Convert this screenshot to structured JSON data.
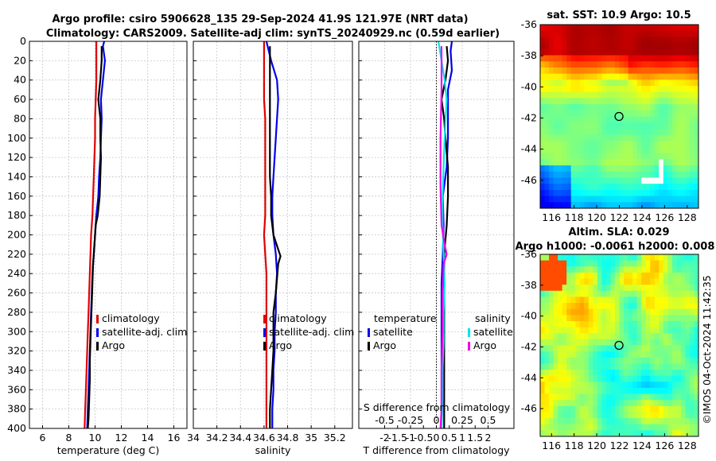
{
  "header": {
    "line1": "Argo profile: csiro 5906628_135 29-Sep-2024 41.9S 121.97E (NRT data)",
    "line2": "Climatology: CARS2009. Satellite-adj clim: synTS_20240929.nc (0.59d earlier)"
  },
  "timestamp": "©IMOS 04-Oct-2024 11:42:35",
  "colors": {
    "climatology": "#e00000",
    "satellite": "#0000ee",
    "argo": "#000000",
    "sal_satellite": "#00e5ee",
    "sal_argo": "#ee00ee",
    "grid": "#c8c8c8"
  },
  "chart_data": [
    {
      "id": "temperature",
      "type": "line",
      "xlabel": "temperature (deg C)",
      "ylabel": "",
      "xlim": [
        5,
        17
      ],
      "ylim": [
        400,
        0
      ],
      "xticks": [
        6,
        8,
        10,
        12,
        14,
        16
      ],
      "yticks": [
        0,
        20,
        40,
        60,
        80,
        100,
        120,
        140,
        160,
        180,
        200,
        220,
        240,
        260,
        280,
        300,
        320,
        340,
        360,
        380,
        400
      ],
      "legend": [
        "climatology",
        "satellite-adj. clim",
        "Argo"
      ],
      "series": [
        {
          "name": "climatology",
          "color": "#e00000",
          "depth": [
            0,
            20,
            40,
            60,
            80,
            100,
            120,
            140,
            160,
            180,
            200,
            220,
            240,
            260,
            280,
            300,
            320,
            340,
            360,
            380,
            400
          ],
          "values": [
            10.1,
            10.1,
            10.1,
            10.05,
            10.0,
            10.0,
            9.95,
            9.9,
            9.85,
            9.8,
            9.7,
            9.65,
            9.6,
            9.55,
            9.5,
            9.45,
            9.4,
            9.35,
            9.3,
            9.25,
            9.2
          ]
        },
        {
          "name": "satellite-adj. clim",
          "color": "#0000ee",
          "depth": [
            0,
            5,
            20,
            40,
            60,
            80,
            100,
            120,
            140,
            160,
            180,
            200,
            220,
            240,
            260,
            280,
            300,
            320,
            340,
            360,
            380,
            400
          ],
          "values": [
            10.7,
            10.6,
            10.75,
            10.6,
            10.45,
            10.5,
            10.45,
            10.4,
            10.3,
            10.25,
            10.1,
            10.0,
            9.9,
            9.8,
            9.75,
            9.7,
            9.65,
            9.6,
            9.55,
            9.5,
            9.45,
            9.4
          ]
        },
        {
          "name": "Argo",
          "color": "#000000",
          "depth": [
            5,
            20,
            40,
            60,
            80,
            100,
            120,
            140,
            160,
            180,
            190,
            210,
            230,
            250,
            270,
            290,
            310,
            330,
            350,
            370,
            390,
            400
          ],
          "values": [
            10.5,
            10.5,
            10.4,
            10.25,
            10.4,
            10.4,
            10.45,
            10.4,
            10.35,
            10.2,
            10.05,
            9.95,
            9.85,
            9.8,
            9.75,
            9.7,
            9.65,
            9.6,
            9.6,
            9.55,
            9.5,
            9.45
          ]
        }
      ]
    },
    {
      "id": "salinity",
      "type": "line",
      "xlabel": "salinity",
      "ylabel": "",
      "xlim": [
        34.0,
        35.35
      ],
      "ylim": [
        400,
        0
      ],
      "xticks": [
        34,
        34.2,
        34.4,
        34.6,
        34.8,
        35,
        35.2
      ],
      "xtick_labels": [
        "34",
        "34.2",
        "34.4",
        "34.6",
        "34.8",
        "35",
        "35.2"
      ],
      "legend": [
        "climatology",
        "satellite-adj. clim",
        "Argo"
      ],
      "series": [
        {
          "name": "climatology",
          "color": "#e00000",
          "depth": [
            0,
            20,
            40,
            60,
            80,
            100,
            120,
            140,
            160,
            180,
            200,
            220,
            240,
            260,
            280,
            300,
            320,
            340,
            360,
            380,
            400
          ],
          "values": [
            34.6,
            34.6,
            34.6,
            34.6,
            34.61,
            34.61,
            34.61,
            34.61,
            34.61,
            34.61,
            34.6,
            34.61,
            34.62,
            34.62,
            34.62,
            34.62,
            34.62,
            34.62,
            34.62,
            34.62,
            34.62
          ]
        },
        {
          "name": "satellite-adj. clim",
          "color": "#0000ee",
          "depth": [
            0,
            20,
            40,
            60,
            80,
            100,
            120,
            140,
            160,
            180,
            200,
            220,
            240,
            260,
            280,
            300,
            320,
            340,
            360,
            380,
            400
          ],
          "values": [
            34.62,
            34.66,
            34.71,
            34.72,
            34.71,
            34.7,
            34.69,
            34.68,
            34.67,
            34.67,
            34.68,
            34.7,
            34.71,
            34.7,
            34.7,
            34.69,
            34.69,
            34.68,
            34.68,
            34.67,
            34.67
          ]
        },
        {
          "name": "Argo",
          "color": "#000000",
          "depth": [
            5,
            20,
            40,
            60,
            80,
            100,
            120,
            140,
            160,
            180,
            200,
            215,
            222,
            230,
            245,
            260,
            280,
            300,
            320,
            340,
            360,
            380,
            400
          ],
          "values": [
            34.65,
            34.65,
            34.65,
            34.65,
            34.65,
            34.65,
            34.65,
            34.65,
            34.66,
            34.66,
            34.68,
            34.72,
            34.74,
            34.72,
            34.71,
            34.7,
            34.68,
            34.68,
            34.68,
            34.67,
            34.66,
            34.65,
            34.65
          ]
        }
      ]
    },
    {
      "id": "difference",
      "type": "line",
      "xlabel": "T difference from climatology",
      "xlabel_top": "S difference from climatology",
      "xlim": [
        -3.0,
        3.0
      ],
      "ylim": [
        400,
        0
      ],
      "xticks": [
        -2,
        -1.5,
        -1,
        -0.5,
        0,
        0.5,
        1,
        1.5,
        2
      ],
      "xtick_labels": [
        "-2",
        "-1.5",
        "-1",
        "-0.5",
        "0",
        "0.5",
        "1",
        "1.5",
        "2"
      ],
      "sticks": [
        -0.5,
        -0.25,
        0,
        0.25,
        0.5
      ],
      "stick_labels": [
        "-0.5",
        "-0.25",
        "0",
        "0.25",
        "0.5"
      ],
      "s_scale": 4,
      "legend_left": {
        "head": "temperature",
        "items": [
          "satellite",
          "Argo"
        ]
      },
      "legend_right": {
        "head": "salinity",
        "items": [
          "satellite",
          "Argo"
        ]
      },
      "series": [
        {
          "name": "T satellite",
          "color": "#0000ee",
          "depth": [
            0,
            10,
            30,
            50,
            70,
            100,
            130,
            160,
            190,
            220,
            250,
            280,
            310,
            340,
            370,
            400
          ],
          "values": [
            0.6,
            0.55,
            0.6,
            0.45,
            0.45,
            0.45,
            0.4,
            0.25,
            0.28,
            0.25,
            0.2,
            0.2,
            0.2,
            0.2,
            0.2,
            0.2
          ]
        },
        {
          "name": "T Argo",
          "color": "#000000",
          "depth": [
            5,
            20,
            40,
            60,
            80,
            100,
            130,
            160,
            190,
            220,
            250,
            280,
            310,
            340,
            370,
            400
          ],
          "values": [
            0.4,
            0.45,
            0.35,
            0.2,
            0.3,
            0.35,
            0.45,
            0.45,
            0.4,
            0.3,
            0.3,
            0.3,
            0.3,
            0.3,
            0.3,
            0.3
          ]
        },
        {
          "name": "S satellite",
          "color": "#00e5ee",
          "depth": [
            0,
            20,
            40,
            60,
            80,
            100,
            130,
            160,
            190,
            220,
            250,
            280,
            310,
            340,
            370,
            400
          ],
          "values": [
            0.02,
            0.05,
            0.08,
            0.1,
            0.09,
            0.08,
            0.07,
            0.06,
            0.06,
            0.07,
            0.08,
            0.07,
            0.07,
            0.06,
            0.06,
            0.05
          ]
        },
        {
          "name": "S Argo",
          "color": "#ee00ee",
          "depth": [
            5,
            50,
            100,
            150,
            190,
            210,
            220,
            230,
            260,
            300,
            340,
            380,
            400
          ],
          "values": [
            0.05,
            0.05,
            0.04,
            0.04,
            0.05,
            0.08,
            0.1,
            0.07,
            0.06,
            0.06,
            0.05,
            0.05,
            0.04
          ]
        }
      ]
    },
    {
      "id": "sst_map",
      "type": "heatmap",
      "title": "sat. SST: 10.9 Argo: 10.5",
      "xlim": [
        115,
        129
      ],
      "ylim": [
        -47.8,
        -36
      ],
      "xticks": [
        116,
        118,
        120,
        122,
        124,
        126,
        128
      ],
      "yticks": [
        -36,
        -38,
        -40,
        -42,
        -44,
        -46
      ],
      "marker": {
        "lon": 121.97,
        "lat": -41.9
      }
    },
    {
      "id": "sla_map",
      "type": "heatmap",
      "title_line1": "Altim. SLA: 0.029",
      "title_line2": "Argo h1000: -0.0061 h2000: 0.008",
      "xlim": [
        115,
        129
      ],
      "ylim": [
        -47.8,
        -36
      ],
      "xticks": [
        116,
        118,
        120,
        122,
        124,
        126,
        128
      ],
      "yticks": [
        -36,
        -38,
        -40,
        -42,
        -44,
        -46
      ],
      "marker": {
        "lon": 121.97,
        "lat": -41.9
      }
    }
  ]
}
